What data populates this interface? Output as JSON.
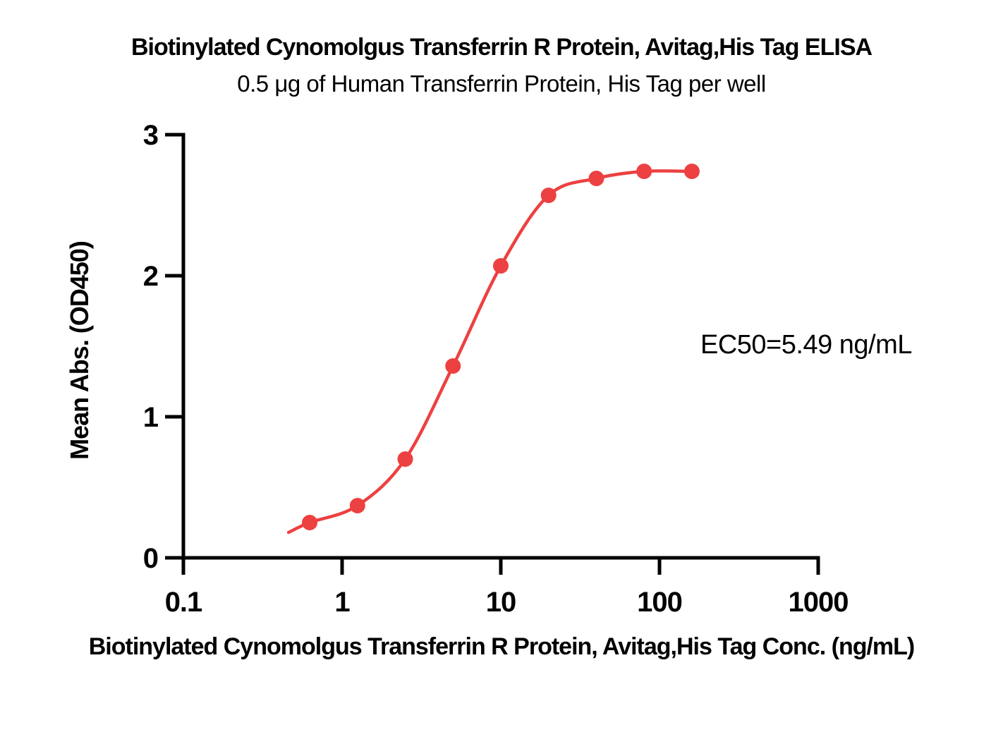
{
  "chart_data": {
    "type": "scatter",
    "title": "Biotinylated Cynomolgus Transferrin R Protein, Avitag,His Tag ELISA",
    "subtitle": "0.5 μg of Human Transferrin Protein, His Tag per well",
    "xlabel": "Biotinylated Cynomolgus Transferrin R Protein, Avitag,His Tag Conc. (ng/mL)",
    "ylabel": "Mean Abs. (OD450)",
    "annotation": "EC50=5.49 ng/mL",
    "ec50_value": 5.49,
    "x_scale": "log",
    "xlim": [
      0.1,
      1000
    ],
    "ylim": [
      0,
      3
    ],
    "x_ticks": {
      "values": [
        0.1,
        1,
        10,
        100,
        1000
      ],
      "labels": [
        "0.1",
        "1",
        "10",
        "100",
        "1000"
      ]
    },
    "y_ticks": {
      "values": [
        0,
        1,
        2,
        3
      ],
      "labels": [
        "0",
        "1",
        "2",
        "3"
      ]
    },
    "x": [
      0.625,
      1.25,
      2.5,
      5,
      10,
      20,
      40,
      80,
      160
    ],
    "y": [
      0.25,
      0.37,
      0.7,
      1.36,
      2.07,
      2.57,
      2.69,
      2.74,
      2.74
    ],
    "curve_tail_point": {
      "x": 0.46,
      "y": 0.18
    },
    "grid": false,
    "legend": false,
    "colors": {
      "series": "#ED4040",
      "axis": "#000000",
      "text": "#000000",
      "background": "#FFFFFF"
    }
  }
}
